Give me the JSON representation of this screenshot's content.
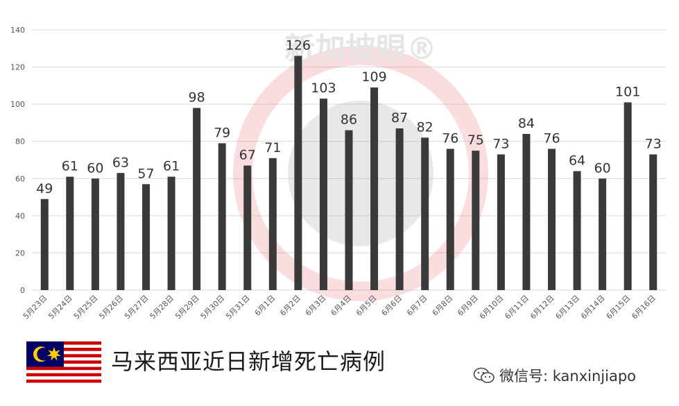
{
  "chart_data": {
    "type": "bar",
    "categories": [
      "5月23日",
      "5月24日",
      "5月25日",
      "5月26日",
      "5月27日",
      "5月28日",
      "5月29日",
      "5月30日",
      "5月31日",
      "6月1日",
      "6月2日",
      "6月3日",
      "6月4日",
      "6月5日",
      "6月6日",
      "6月7日",
      "6月8日",
      "6月9日",
      "6月10日",
      "6月11日",
      "6月12日",
      "6月13日",
      "6月14日",
      "6月15日",
      "6月16日"
    ],
    "values": [
      49,
      61,
      60,
      63,
      57,
      61,
      98,
      79,
      67,
      71,
      126,
      103,
      86,
      109,
      87,
      82,
      76,
      75,
      73,
      84,
      76,
      64,
      60,
      101,
      73
    ],
    "ylim": [
      0,
      140
    ],
    "yticks": [
      0,
      20,
      40,
      60,
      80,
      100,
      120,
      140
    ],
    "grid": true,
    "bar_color": "#3a3a3a"
  },
  "caption": "马来西亚近日新增死亡病例",
  "watermark": "新加坡眼®",
  "credit": "微信号: kanxinjiapo"
}
